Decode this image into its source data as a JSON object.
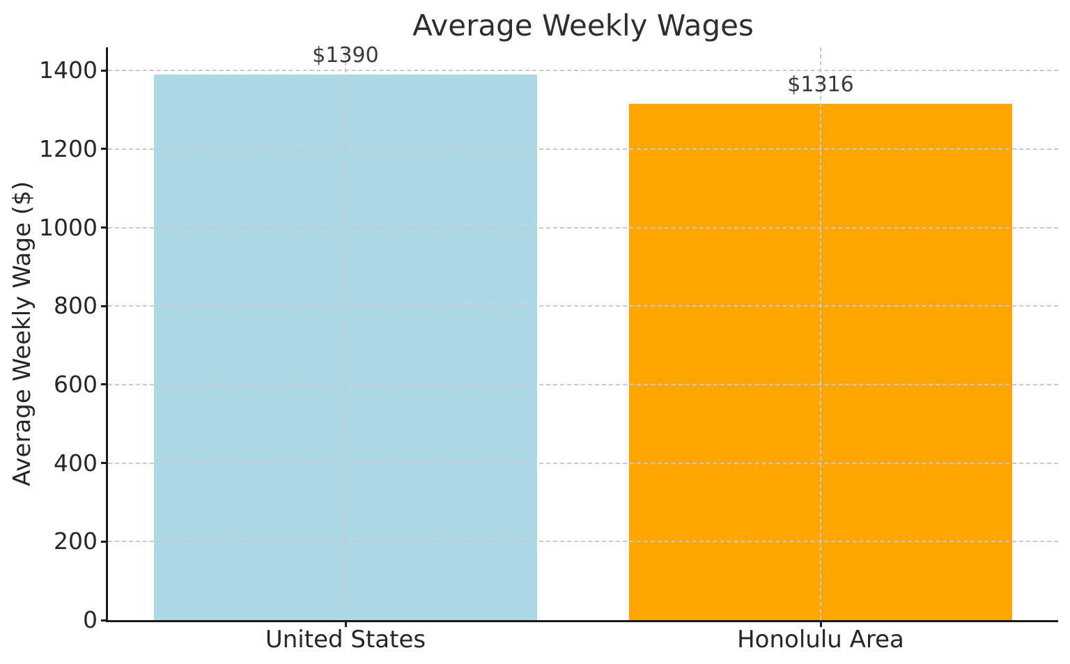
{
  "chart_data": {
    "type": "bar",
    "title": "Average Weekly Wages",
    "ylabel": "Average Weekly Wage ($)",
    "xlabel": "",
    "categories": [
      "United States",
      "Honolulu Area"
    ],
    "values": [
      1390,
      1316
    ],
    "value_labels": [
      "$1390",
      "$1316"
    ],
    "bar_colors": [
      "#ADD8E6",
      "#FFA500"
    ],
    "yticks": [
      0,
      200,
      400,
      600,
      800,
      1000,
      1200,
      1400
    ],
    "ylim": [
      0,
      1459
    ],
    "grid": "dashed gridlines, horizontal at y-ticks and vertical at category centers, drawn above bars",
    "legend": "none",
    "background_color": "#ffffff",
    "grid_color": "#c9c9c9",
    "spine_color": "#1a1a1a",
    "text_color": "#262626"
  }
}
